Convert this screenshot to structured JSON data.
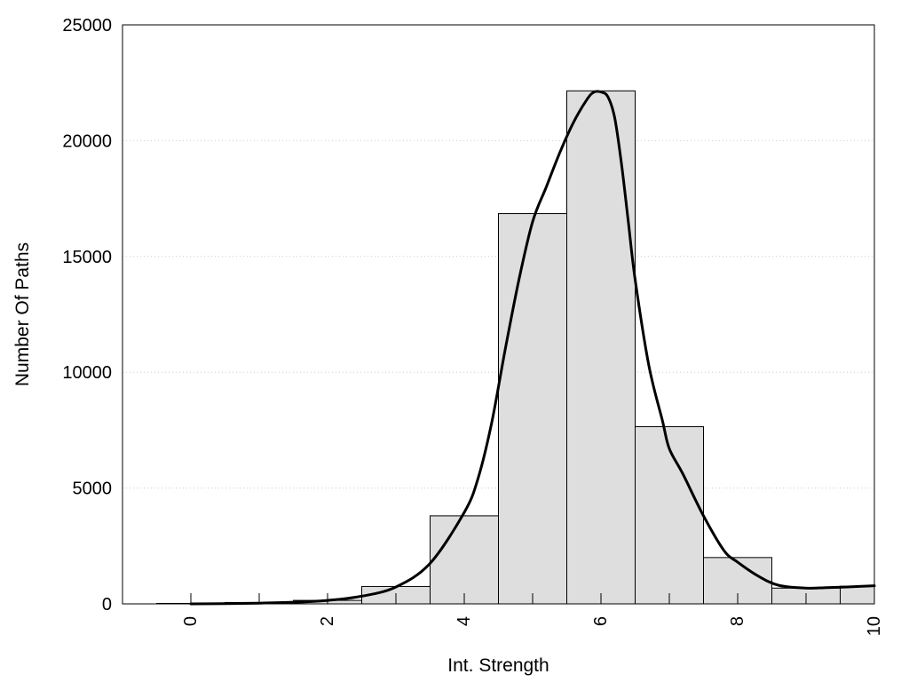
{
  "colors": {
    "bar_fill": "#dedede",
    "bar_stroke": "#000000",
    "curve": "#000000",
    "grid": "#cccccc",
    "background": "#ffffff"
  },
  "chart_data": {
    "type": "bar",
    "xlabel": "Int. Strength",
    "ylabel": "Number Of Paths",
    "xlim": [
      -1,
      10
    ],
    "ylim": [
      0,
      25000
    ],
    "x_ticks": [
      0,
      2,
      4,
      6,
      8,
      10
    ],
    "y_ticks": [
      0,
      5000,
      10000,
      15000,
      20000,
      25000
    ],
    "grid": "horizontal dotted",
    "series": [
      {
        "type": "bar",
        "x": [
          0,
          1,
          2,
          3,
          4,
          5,
          6,
          7,
          8,
          9,
          10
        ],
        "values": [
          20,
          60,
          150,
          750,
          3800,
          16850,
          22150,
          7650,
          2000,
          680,
          760
        ]
      },
      {
        "type": "line",
        "x": [
          0,
          0.5,
          1,
          1.5,
          2,
          2.5,
          3,
          3.5,
          4,
          4.2,
          4.4,
          4.6,
          4.8,
          5,
          5.2,
          5.4,
          5.6,
          5.8,
          5.9,
          6,
          6.1,
          6.2,
          6.3,
          6.4,
          6.5,
          6.7,
          6.9,
          7,
          7.2,
          7.5,
          7.8,
          8,
          8.3,
          8.6,
          9,
          9.3,
          9.6,
          10
        ],
        "values": [
          0,
          10,
          30,
          70,
          150,
          330,
          730,
          1750,
          3950,
          5400,
          7800,
          11000,
          14000,
          16500,
          18000,
          19500,
          20800,
          21800,
          22100,
          22100,
          21900,
          21000,
          19000,
          16500,
          14000,
          10300,
          7900,
          6700,
          5600,
          3800,
          2300,
          1800,
          1200,
          800,
          680,
          700,
          730,
          780
        ]
      }
    ]
  }
}
